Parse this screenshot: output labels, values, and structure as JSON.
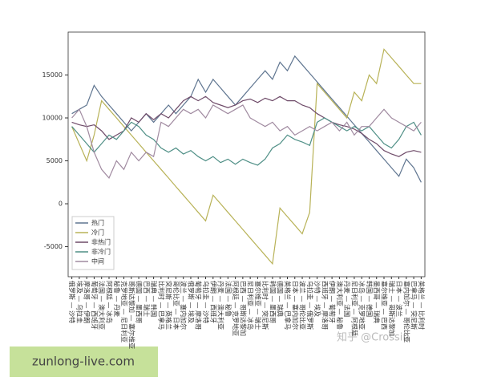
{
  "chart_data": {
    "type": "line",
    "categories": [
      "俄罗斯 — 沙特",
      "埃及 — 乌拉圭",
      "摩洛哥 — 伊朗",
      "葡萄牙 — 西班牙",
      "法国 — 澳大利亚",
      "阿根廷 — 冰岛",
      "秘鲁 — 丹麦",
      "克罗地亚 — 尼日利亚",
      "哥斯达黎加 — 塞尔维亚",
      "德国 — 墨西哥",
      "巴西 — 瑞士",
      "瑞典 — 韩国",
      "比利时 — 巴拿马",
      "突尼斯 — 英格兰",
      "哥伦比亚 — 日本",
      "波兰 — 塞内加尔",
      "俄罗斯 — 埃及",
      "葡萄牙 — 摩洛哥",
      "乌拉圭 — 沙特",
      "伊朗 — 西班牙",
      "丹麦 — 澳大利亚",
      "法国 — 秘鲁",
      "阿根廷 — 克罗地亚",
      "巴西 — 哥斯达黎加",
      "尼日利亚 — 冰岛",
      "塞尔维亚 — 瑞士",
      "比利时 — 突尼斯",
      "韩国 — 墨西哥",
      "德国 — 瑞典",
      "英格兰 — 巴拿马",
      "日本 — 塞内加尔",
      "波兰 — 哥伦比亚",
      "乌拉圭 — 俄罗斯",
      "沙特 — 埃及",
      "西班牙 — 摩洛哥",
      "伊朗 — 葡萄牙",
      "澳大利亚 — 秘鲁",
      "丹麦 — 法国",
      "尼日利亚 — 阿根廷",
      "冰岛 — 克罗地亚",
      "韩国 — 德国",
      "墨西哥 — 瑞典",
      "塞尔维亚 — 巴西",
      "瑞士 — 哥斯达黎加",
      "日本 — 波兰",
      "塞内加尔 — 哥伦比亚",
      "巴拿马 — 突尼斯",
      "英格兰 — 比利时"
    ],
    "series": [
      {
        "name": "热门",
        "color": "#5f7590",
        "values": [
          10500,
          11000,
          11500,
          13800,
          12500,
          11500,
          10500,
          9500,
          8500,
          9500,
          10500,
          9500,
          10500,
          11500,
          10500,
          11500,
          12500,
          14500,
          13000,
          14500,
          13500,
          12500,
          11500,
          12500,
          13500,
          14500,
          15500,
          14500,
          16500,
          15500,
          17200,
          16200,
          15200,
          14200,
          13200,
          12200,
          11200,
          10200,
          9200,
          8200,
          7200,
          6200,
          5200,
          4200,
          3200,
          5200,
          4200,
          2500
        ]
      },
      {
        "name": "冷门",
        "color": "#b8b257",
        "values": [
          9000,
          7000,
          5000,
          8000,
          12000,
          11000,
          10000,
          9000,
          8000,
          7000,
          6000,
          5000,
          4000,
          3000,
          2000,
          1000,
          0,
          -1000,
          -2000,
          1000,
          0,
          -1000,
          -2000,
          -3000,
          -4000,
          -5000,
          -6000,
          -7000,
          -500,
          -1500,
          -2500,
          -3500,
          -1000,
          14000,
          13000,
          12000,
          11000,
          10000,
          13000,
          12000,
          15000,
          14000,
          18000,
          17000,
          16000,
          15000,
          14000,
          14000
        ]
      },
      {
        "name": "非热门",
        "color": "#6e4a68",
        "values": [
          9500,
          9200,
          9000,
          9200,
          8500,
          7500,
          8000,
          8500,
          10000,
          9500,
          10500,
          9800,
          10500,
          10000,
          11000,
          12000,
          12500,
          12000,
          12500,
          11800,
          11500,
          11200,
          11500,
          12000,
          12200,
          11800,
          12300,
          12000,
          12500,
          12000,
          12000,
          11500,
          11200,
          10500,
          10000,
          9500,
          9200,
          9000,
          8700,
          8200,
          7500,
          7000,
          6200,
          5800,
          5500,
          6000,
          6200,
          6000
        ]
      },
      {
        "name": "非冷门",
        "color": "#4f8f86",
        "values": [
          9000,
          8000,
          7000,
          6000,
          7000,
          8000,
          7500,
          8500,
          9500,
          9000,
          8000,
          7500,
          6500,
          6000,
          6500,
          5800,
          6200,
          5500,
          5000,
          5500,
          4800,
          5200,
          4600,
          5200,
          4800,
          4500,
          5200,
          6500,
          7000,
          8000,
          7500,
          7200,
          6800,
          9500,
          10000,
          9500,
          9000,
          8500,
          9000,
          8500,
          9000,
          8000,
          7000,
          6500,
          7500,
          9000,
          9500,
          8000
        ]
      },
      {
        "name": "中间",
        "color": "#a08aa0",
        "values": [
          10000,
          11000,
          9000,
          6000,
          4000,
          3000,
          5000,
          4000,
          6000,
          5000,
          6000,
          5500,
          9500,
          9000,
          10000,
          11000,
          10500,
          11000,
          10000,
          11500,
          11000,
          10500,
          11000,
          11500,
          10000,
          9500,
          9000,
          9500,
          8500,
          9000,
          8000,
          8500,
          9000,
          8500,
          9000,
          9500,
          8500,
          9500,
          8000,
          9000,
          9000,
          10000,
          11000,
          10000,
          9500,
          9000,
          8500,
          9500
        ]
      }
    ],
    "ylim": [
      -8500,
      20000
    ],
    "yticks": [
      -5000,
      0,
      5000,
      10000,
      15000
    ],
    "legend": "lower left"
  },
  "watermark": "zunlong-live.com",
  "credit": "知乎 @Crossin"
}
